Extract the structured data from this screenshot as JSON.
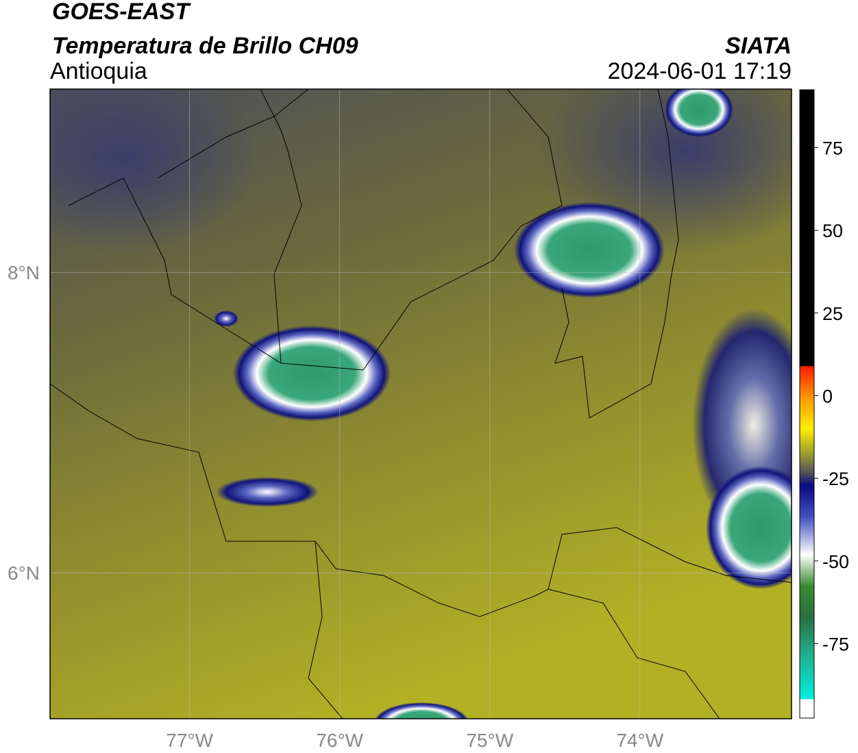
{
  "header": {
    "title": "GOES-EAST",
    "subtitle": "Temperatura de Brillo CH09",
    "region": "Antioquia",
    "source": "SIATA",
    "datetime": "2024-06-01 17:19"
  },
  "map": {
    "xlim": [
      -77.93,
      -72.99
    ],
    "ylim": [
      5.03,
      9.22
    ],
    "xticks": [
      {
        "value": -77,
        "label": "77°W"
      },
      {
        "value": -76,
        "label": "76°W"
      },
      {
        "value": -75,
        "label": "75°W"
      },
      {
        "value": -74,
        "label": "74°W"
      }
    ],
    "yticks": [
      {
        "value": 8,
        "label": "8°N"
      },
      {
        "value": 6,
        "label": "6°N"
      }
    ]
  },
  "colorbar": {
    "lim": [
      -97.5,
      92.5
    ],
    "ticks": [
      75,
      50,
      25,
      0,
      -25,
      -50,
      -75
    ]
  }
}
